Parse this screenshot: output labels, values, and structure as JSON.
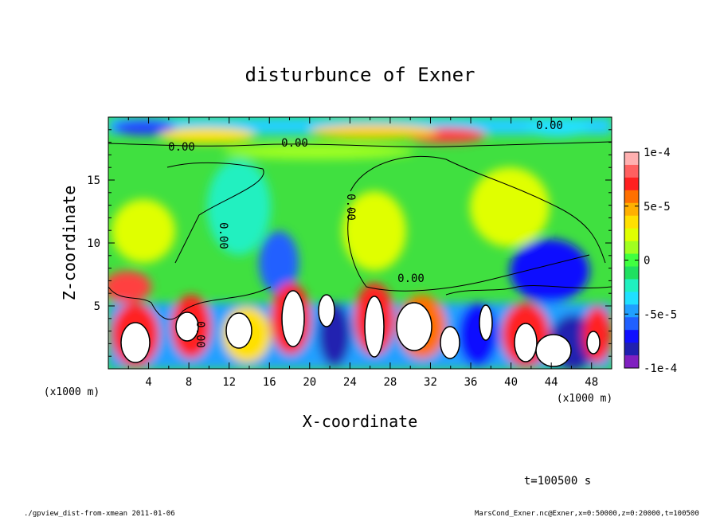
{
  "chart_data": {
    "type": "heatmap",
    "title": "disturbunce of Exner",
    "xlabel": "X-coordinate",
    "ylabel": "Z-coordinate",
    "x_unit_label": "(x1000 m)",
    "y_unit_label": "(x1000 m)",
    "xlim": [
      0,
      50
    ],
    "ylim": [
      0,
      20
    ],
    "x_ticks": [
      4,
      8,
      12,
      16,
      20,
      24,
      28,
      32,
      36,
      40,
      44,
      48
    ],
    "y_ticks": [
      5,
      10,
      15
    ],
    "colorbar": {
      "min": -0.0001,
      "max": 0.0001,
      "tick_labels": [
        "1e-4",
        "5e-5",
        "0",
        "-5e-5",
        "-1e-4"
      ],
      "tick_values": [
        0.0001,
        5e-05,
        0,
        -5e-05,
        -0.0001
      ],
      "colors": [
        "#ffb0b0",
        "#ff6060",
        "#ff2020",
        "#ff7000",
        "#ffb000",
        "#ffe000",
        "#e0ff00",
        "#a0ff20",
        "#40ff40",
        "#20e060",
        "#20f0c0",
        "#20e0ff",
        "#20a0ff",
        "#2060ff",
        "#1010ff",
        "#2020b0",
        "#8020c0"
      ]
    },
    "contour_labels": [
      "0.00",
      "0.00",
      "0.00",
      "0.00",
      "0.00",
      "0.00",
      "0.00"
    ],
    "time_label": "t=100500 s",
    "footer_left": "./gpview_dist-from-xmean  2011-01-06",
    "footer_right": "MarsCond_Exner.nc@Exner,x=0:50000,z=0:20000,t=100500"
  }
}
